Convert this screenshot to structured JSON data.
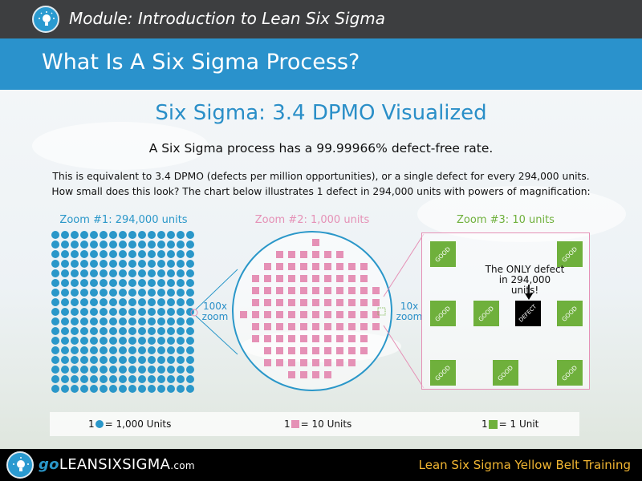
{
  "header": {
    "module_title": "Module: Introduction to Lean Six Sigma",
    "slide_title": "What Is A Six Sigma Process?"
  },
  "content": {
    "subtitle": "Six Sigma: 3.4 DPMO Visualized",
    "tagline": "A Six Sigma process has a 99.99966% defect-free rate.",
    "description_line1": "This is equivalent to 3.4 DPMO (defects per million opportunities), or a single defect for every 294,000 units.",
    "description_line2": "How small does this look? The chart below illustrates 1 defect in 294,000 units with powers of magnification:"
  },
  "zooms": {
    "zoom1_label": "Zoom #1: 294,000 units",
    "zoom2_label": "Zoom #2: 1,000 units",
    "zoom3_label": "Zoom #3: 10 units",
    "zoom_100x_top": "100x",
    "zoom_100x_bottom": "zoom",
    "zoom_10x_top": "10x",
    "zoom_10x_bottom": "zoom",
    "good_label": "GOOD",
    "defect_label": "DEFECT",
    "only_defect_line1": "The ONLY defect",
    "only_defect_line2": "in 294,000 units!"
  },
  "legend": {
    "item1_count": "1",
    "item1_text": "= 1,000 Units",
    "item2_count": "1",
    "item2_text": "= 10 Units",
    "item3_count": "1",
    "item3_text": "= 1 Unit"
  },
  "footer": {
    "brand_go": "go",
    "brand_name": "LEANSIXSIGMA",
    "brand_suffix": ".com",
    "course": "Lean Six Sigma Yellow Belt Training"
  },
  "colors": {
    "blue": "#2a97c9",
    "pink": "#e591b6",
    "green": "#6fb03c",
    "gold": "#f2b632"
  },
  "icons": [
    "lightbulb-icon"
  ]
}
